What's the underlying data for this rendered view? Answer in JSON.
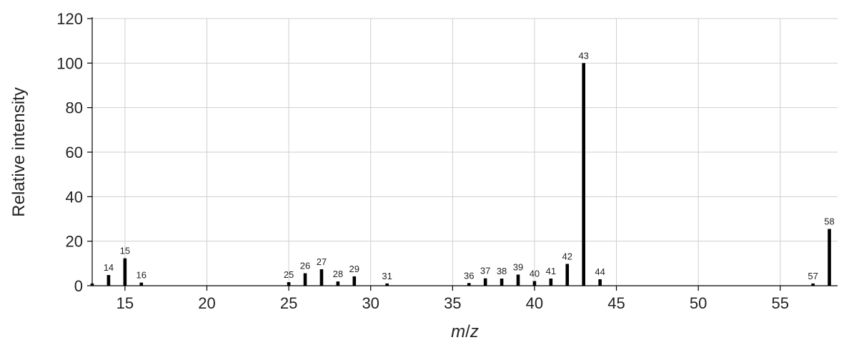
{
  "chart_data": {
    "type": "bar",
    "title": "",
    "xlabel_prefix": "m",
    "xlabel_sep": "/",
    "xlabel_suffix": "z",
    "ylabel": "Relative intensity",
    "xlim": [
      13,
      58.5
    ],
    "ylim": [
      0,
      120
    ],
    "xticks": [
      15,
      20,
      25,
      30,
      35,
      40,
      45,
      50,
      55
    ],
    "yticks": [
      0,
      20,
      40,
      60,
      80,
      100,
      120
    ],
    "grid": true,
    "bar_color": "#000000",
    "peaks": [
      {
        "x": 13,
        "y": 1.0,
        "label": ""
      },
      {
        "x": 14,
        "y": 4.8,
        "label": "14"
      },
      {
        "x": 15,
        "y": 12.3,
        "label": "15"
      },
      {
        "x": 16,
        "y": 1.4,
        "label": "16"
      },
      {
        "x": 25,
        "y": 1.6,
        "label": "25"
      },
      {
        "x": 26,
        "y": 5.6,
        "label": "26"
      },
      {
        "x": 27,
        "y": 7.4,
        "label": "27"
      },
      {
        "x": 28,
        "y": 1.9,
        "label": "28"
      },
      {
        "x": 29,
        "y": 4.2,
        "label": "29"
      },
      {
        "x": 31,
        "y": 1.0,
        "label": "31"
      },
      {
        "x": 36,
        "y": 1.2,
        "label": "36"
      },
      {
        "x": 37,
        "y": 3.3,
        "label": "37"
      },
      {
        "x": 38,
        "y": 3.2,
        "label": "38"
      },
      {
        "x": 39,
        "y": 5.0,
        "label": "39"
      },
      {
        "x": 40,
        "y": 2.1,
        "label": "40"
      },
      {
        "x": 41,
        "y": 3.2,
        "label": "41"
      },
      {
        "x": 42,
        "y": 9.8,
        "label": "42"
      },
      {
        "x": 43,
        "y": 100.0,
        "label": "43"
      },
      {
        "x": 44,
        "y": 2.9,
        "label": "44"
      },
      {
        "x": 57,
        "y": 1.0,
        "label": "57"
      },
      {
        "x": 58,
        "y": 25.5,
        "label": "58"
      }
    ]
  }
}
